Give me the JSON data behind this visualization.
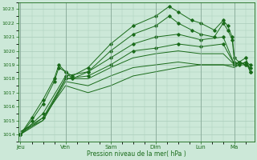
{
  "bg_color": "#cce8d8",
  "grid_color": "#aaccbb",
  "line_color": "#1a6b1a",
  "title": "Pression niveau de la mer( hPa )",
  "ylim": [
    1013.5,
    1023.5
  ],
  "yticks": [
    1014,
    1015,
    1016,
    1017,
    1018,
    1019,
    1020,
    1021,
    1022,
    1023
  ],
  "day_labels": [
    "Jeu",
    "Ven",
    "Sam",
    "Dim",
    "Lun",
    "Ma"
  ],
  "day_x": [
    0,
    1,
    2,
    3,
    4,
    4.75
  ],
  "xlim_days": 5.2,
  "series": [
    {
      "points": [
        [
          0,
          1014.0
        ],
        [
          0.25,
          1015.2
        ],
        [
          0.5,
          1016.5
        ],
        [
          0.75,
          1018.0
        ],
        [
          0.85,
          1019.0
        ],
        [
          1.0,
          1018.5
        ],
        [
          1.15,
          1018.2
        ],
        [
          1.5,
          1018.8
        ],
        [
          2.0,
          1020.5
        ],
        [
          2.5,
          1021.8
        ],
        [
          3.0,
          1022.5
        ],
        [
          3.3,
          1023.2
        ],
        [
          3.5,
          1022.8
        ],
        [
          3.8,
          1022.2
        ],
        [
          4.0,
          1022.0
        ],
        [
          4.3,
          1021.5
        ],
        [
          4.5,
          1022.2
        ],
        [
          4.6,
          1021.8
        ],
        [
          4.7,
          1021.0
        ],
        [
          4.75,
          1019.5
        ],
        [
          4.85,
          1019.2
        ],
        [
          5.0,
          1019.5
        ],
        [
          5.1,
          1018.5
        ]
      ],
      "has_markers": true
    },
    {
      "points": [
        [
          0,
          1014.0
        ],
        [
          0.25,
          1015.0
        ],
        [
          0.5,
          1016.2
        ],
        [
          0.75,
          1017.8
        ],
        [
          0.85,
          1018.8
        ],
        [
          1.0,
          1018.5
        ],
        [
          1.15,
          1018.0
        ],
        [
          1.5,
          1018.5
        ],
        [
          2.0,
          1020.0
        ],
        [
          2.5,
          1021.2
        ],
        [
          3.0,
          1021.8
        ],
        [
          3.3,
          1022.5
        ],
        [
          3.5,
          1022.0
        ],
        [
          3.8,
          1021.5
        ],
        [
          4.0,
          1021.2
        ],
        [
          4.3,
          1021.0
        ],
        [
          4.5,
          1022.0
        ],
        [
          4.6,
          1021.5
        ],
        [
          4.7,
          1020.8
        ],
        [
          4.75,
          1019.2
        ],
        [
          4.85,
          1019.0
        ],
        [
          5.0,
          1019.2
        ],
        [
          5.1,
          1018.5
        ]
      ],
      "has_markers": true
    },
    {
      "points": [
        [
          0,
          1014.0
        ],
        [
          0.5,
          1015.5
        ],
        [
          1.0,
          1018.2
        ],
        [
          1.5,
          1018.5
        ],
        [
          2.0,
          1019.5
        ],
        [
          2.5,
          1020.5
        ],
        [
          3.0,
          1021.0
        ],
        [
          3.5,
          1021.2
        ],
        [
          4.0,
          1020.8
        ],
        [
          4.5,
          1021.0
        ],
        [
          4.75,
          1019.0
        ],
        [
          4.85,
          1019.2
        ],
        [
          5.0,
          1019.0
        ],
        [
          5.1,
          1018.8
        ]
      ],
      "has_markers": true
    },
    {
      "points": [
        [
          0,
          1014.0
        ],
        [
          0.5,
          1015.2
        ],
        [
          1.0,
          1018.0
        ],
        [
          1.5,
          1018.2
        ],
        [
          2.0,
          1019.0
        ],
        [
          2.5,
          1020.0
        ],
        [
          3.0,
          1020.2
        ],
        [
          3.5,
          1020.5
        ],
        [
          4.0,
          1020.3
        ],
        [
          4.5,
          1020.5
        ],
        [
          4.75,
          1019.0
        ],
        [
          4.85,
          1019.2
        ],
        [
          5.0,
          1019.0
        ],
        [
          5.1,
          1019.0
        ]
      ],
      "has_markers": true
    },
    {
      "points": [
        [
          0,
          1014.0
        ],
        [
          0.5,
          1015.0
        ],
        [
          1.0,
          1018.0
        ],
        [
          1.5,
          1018.0
        ],
        [
          2.0,
          1018.8
        ],
        [
          2.5,
          1019.5
        ],
        [
          3.0,
          1019.8
        ],
        [
          3.5,
          1020.0
        ],
        [
          4.0,
          1019.8
        ],
        [
          4.5,
          1019.8
        ],
        [
          4.75,
          1019.0
        ],
        [
          4.85,
          1019.2
        ],
        [
          5.0,
          1019.0
        ],
        [
          5.1,
          1018.8
        ]
      ],
      "has_markers": false
    },
    {
      "points": [
        [
          0,
          1014.2
        ],
        [
          0.5,
          1015.0
        ],
        [
          1.0,
          1017.8
        ],
        [
          1.5,
          1017.5
        ],
        [
          2.0,
          1018.2
        ],
        [
          2.5,
          1018.8
        ],
        [
          3.0,
          1019.0
        ],
        [
          3.5,
          1019.2
        ],
        [
          4.0,
          1019.0
        ],
        [
          4.5,
          1019.0
        ],
        [
          4.75,
          1018.8
        ],
        [
          4.85,
          1019.0
        ],
        [
          5.0,
          1019.0
        ],
        [
          5.1,
          1018.8
        ]
      ],
      "has_markers": false
    },
    {
      "points": [
        [
          0,
          1014.2
        ],
        [
          0.5,
          1015.2
        ],
        [
          1.0,
          1017.5
        ],
        [
          1.5,
          1017.0
        ],
        [
          2.0,
          1017.5
        ],
        [
          2.5,
          1018.2
        ],
        [
          3.0,
          1018.5
        ],
        [
          3.5,
          1018.8
        ],
        [
          4.0,
          1019.0
        ],
        [
          4.5,
          1019.0
        ],
        [
          4.75,
          1019.0
        ],
        [
          4.85,
          1019.0
        ],
        [
          5.0,
          1019.2
        ],
        [
          5.1,
          1019.0
        ]
      ],
      "has_markers": false
    }
  ]
}
